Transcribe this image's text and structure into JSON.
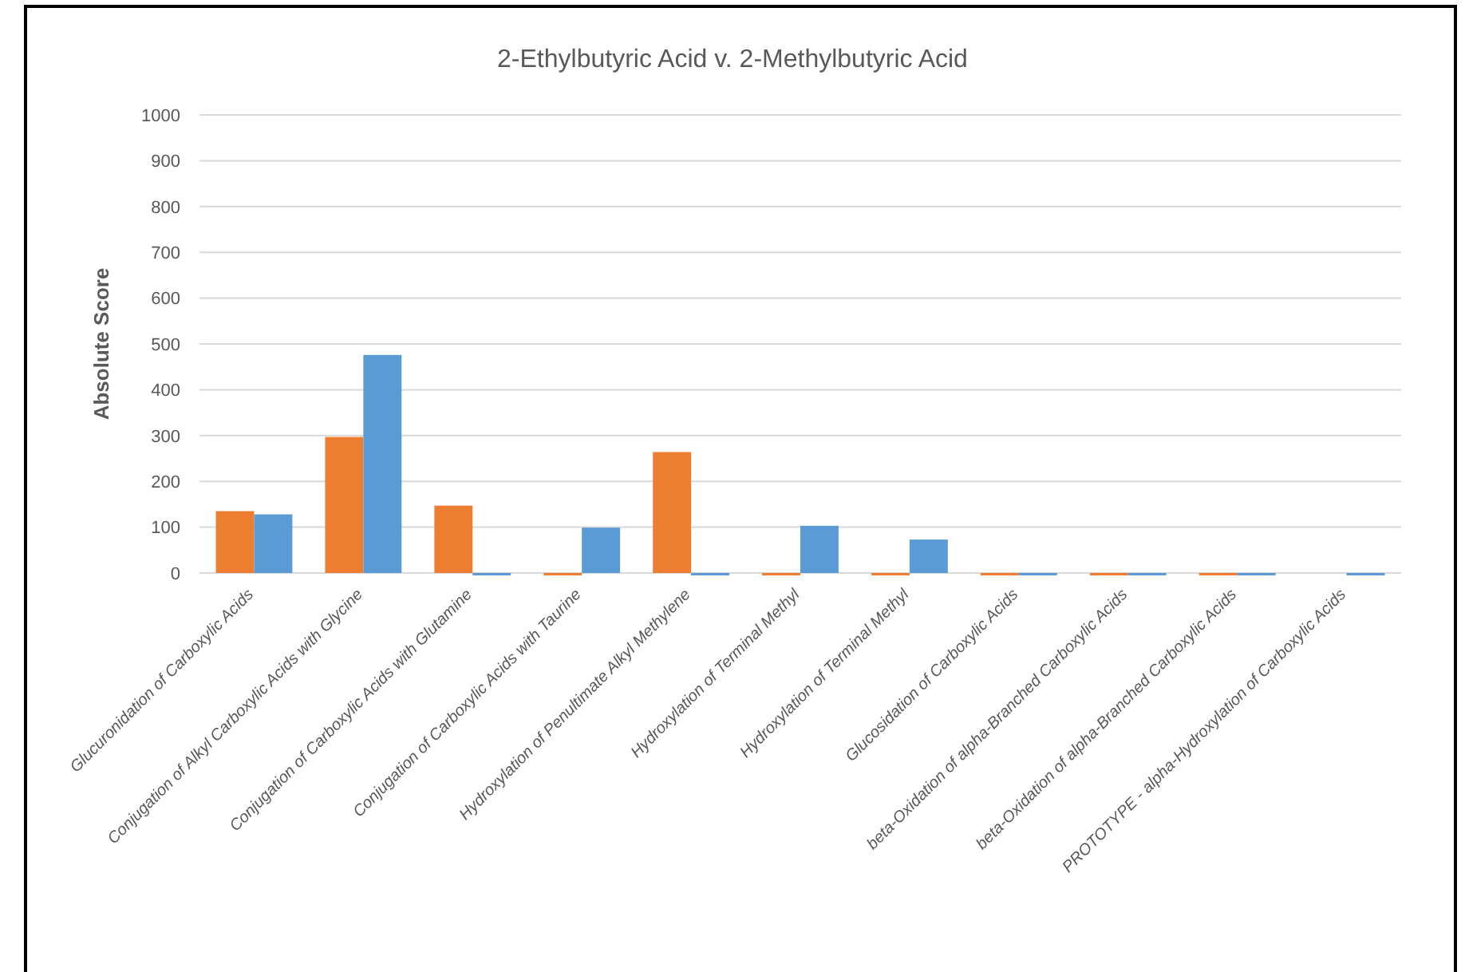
{
  "chart_data": {
    "type": "bar",
    "title": "2-Ethylbutyric Acid v. 2-Methylbutyric Acid",
    "ylabel": "Absolute Score",
    "categories": [
      "Glucuronidation of Carboxylic Acids",
      "Conjugation of Alkyl Carboxylic Acids with Glycine",
      "Conjugation of Carboxylic Acids with Glutamine",
      "Conjugation of Carboxylic Acids with Taurine",
      "Hydroxylation of Penultimate Alkyl Methylene",
      "Hydroxylation of Terminal Methyl",
      "Hydroxylation of Terminal Methyl",
      "Glucosidation of Carboxylic Acids",
      "beta-Oxidation of alpha-Branched Carboxylic Acids",
      "beta-Oxidation of alpha-Branched Carboxylic Acids",
      "PROTOTYPE - alpha-Hydroxylation of Carboxylic Acids"
    ],
    "series": [
      {
        "color": "#ed7d31",
        "values": [
          135,
          297,
          147,
          0,
          264,
          0,
          0,
          0,
          0,
          0,
          null
        ]
      },
      {
        "color": "#5b9bd5",
        "values": [
          128,
          476,
          0,
          99,
          0,
          103,
          73,
          0,
          0,
          0,
          0
        ]
      }
    ],
    "ylim": [
      0,
      1000
    ],
    "yticks": [
      0,
      100,
      200,
      300,
      400,
      500,
      600,
      700,
      800,
      900,
      1000
    ],
    "grid": "y"
  }
}
